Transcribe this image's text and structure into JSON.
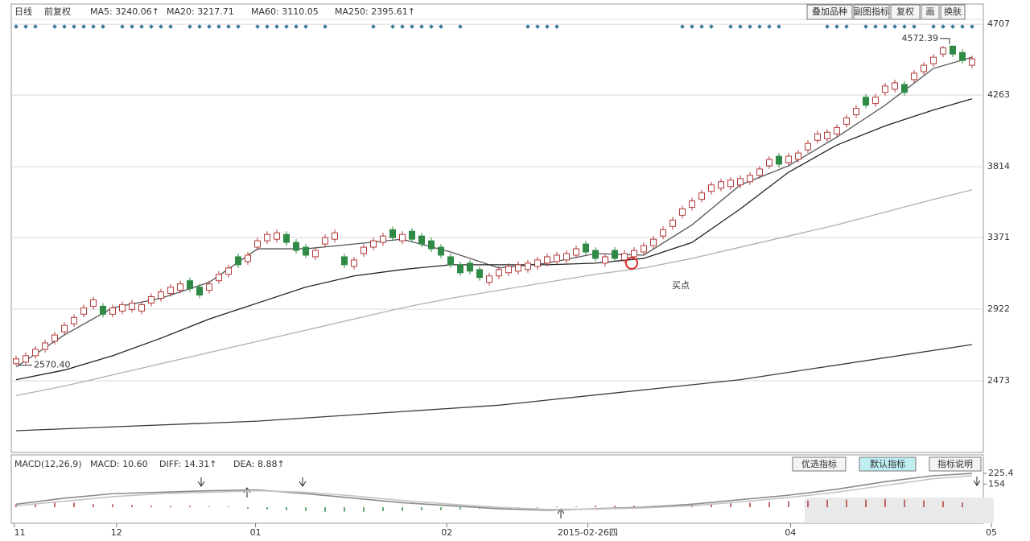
{
  "chart_data": [
    {
      "type": "candlestick",
      "period": "日线",
      "adjust": "前复权",
      "buttons": [
        "叠加品种",
        "副图指标",
        "复权",
        "画",
        "换肤"
      ],
      "up_color": "#b23a3a",
      "down_color": "#2f8a46",
      "open": [
        2580,
        2590,
        2630,
        2670,
        2720,
        2780,
        2830,
        2890,
        2940,
        2940,
        2890,
        2910,
        2920,
        2910,
        2960,
        2990,
        3020,
        3040,
        3100,
        3060,
        3040,
        3100,
        3140,
        3250,
        3220,
        3310,
        3350,
        3360,
        3390,
        3340,
        3310,
        3250,
        3330,
        3360,
        3250,
        3190,
        3270,
        3310,
        3340,
        3420,
        3350,
        3410,
        3380,
        3350,
        3310,
        3250,
        3200,
        3210,
        3170,
        3090,
        3130,
        3150,
        3160,
        3170,
        3190,
        3210,
        3220,
        3230,
        3260,
        3330,
        3290,
        3210,
        3290,
        3230,
        3250,
        3280,
        3320,
        3380,
        3440,
        3510,
        3560,
        3610,
        3660,
        3680,
        3690,
        3700,
        3720,
        3760,
        3820,
        3880,
        3840,
        3860,
        3920,
        3980,
        3990,
        4020,
        4080,
        4140,
        4250,
        4210,
        4280,
        4300,
        4330,
        4360,
        4410,
        4460,
        4520,
        4570,
        4530,
        4450
      ],
      "high": [
        2630,
        2650,
        2690,
        2730,
        2780,
        2840,
        2890,
        2950,
        3000,
        2960,
        2950,
        2970,
        2980,
        2970,
        3020,
        3050,
        3080,
        3100,
        3120,
        3080,
        3100,
        3160,
        3200,
        3270,
        3280,
        3370,
        3410,
        3420,
        3410,
        3360,
        3330,
        3310,
        3390,
        3420,
        3270,
        3250,
        3330,
        3370,
        3400,
        3440,
        3410,
        3430,
        3400,
        3370,
        3330,
        3270,
        3220,
        3230,
        3190,
        3150,
        3190,
        3210,
        3220,
        3230,
        3250,
        3270,
        3280,
        3290,
        3320,
        3350,
        3310,
        3270,
        3310,
        3290,
        3310,
        3340,
        3380,
        3440,
        3500,
        3570,
        3620,
        3670,
        3720,
        3740,
        3750,
        3760,
        3780,
        3820,
        3880,
        3900,
        3900,
        3920,
        3980,
        4040,
        4050,
        4080,
        4140,
        4200,
        4270,
        4270,
        4340,
        4360,
        4350,
        4420,
        4470,
        4520,
        4570,
        4572.39,
        4550,
        4510
      ],
      "low": [
        2570.4,
        2575,
        2610,
        2650,
        2700,
        2760,
        2810,
        2870,
        2920,
        2870,
        2870,
        2890,
        2900,
        2890,
        2940,
        2970,
        3000,
        3020,
        3030,
        2990,
        3020,
        3080,
        3120,
        3180,
        3200,
        3290,
        3330,
        3340,
        3320,
        3270,
        3240,
        3230,
        3310,
        3340,
        3180,
        3170,
        3250,
        3290,
        3320,
        3350,
        3330,
        3340,
        3310,
        3280,
        3240,
        3180,
        3130,
        3140,
        3100,
        3070,
        3110,
        3130,
        3140,
        3150,
        3170,
        3190,
        3200,
        3210,
        3240,
        3260,
        3220,
        3190,
        3220,
        3210,
        3230,
        3260,
        3300,
        3360,
        3420,
        3490,
        3540,
        3590,
        3640,
        3660,
        3670,
        3680,
        3700,
        3740,
        3800,
        3810,
        3820,
        3840,
        3900,
        3960,
        3970,
        4000,
        4060,
        4120,
        4180,
        4190,
        4260,
        4280,
        4260,
        4340,
        4390,
        4440,
        4500,
        4500,
        4460,
        4430
      ],
      "close": [
        2610,
        2630,
        2670,
        2710,
        2760,
        2820,
        2870,
        2930,
        2980,
        2890,
        2930,
        2950,
        2960,
        2950,
        3000,
        3030,
        3060,
        3080,
        3050,
        3010,
        3080,
        3140,
        3180,
        3200,
        3260,
        3350,
        3390,
        3400,
        3340,
        3290,
        3260,
        3290,
        3370,
        3400,
        3200,
        3230,
        3310,
        3350,
        3380,
        3370,
        3390,
        3360,
        3330,
        3300,
        3260,
        3200,
        3150,
        3160,
        3120,
        3130,
        3170,
        3190,
        3200,
        3210,
        3230,
        3250,
        3260,
        3270,
        3300,
        3280,
        3240,
        3250,
        3240,
        3270,
        3290,
        3320,
        3360,
        3420,
        3480,
        3550,
        3600,
        3650,
        3700,
        3720,
        3730,
        3740,
        3760,
        3800,
        3860,
        3830,
        3880,
        3900,
        3960,
        4020,
        4030,
        4060,
        4120,
        4180,
        4200,
        4250,
        4320,
        4340,
        4280,
        4400,
        4450,
        4500,
        4560,
        4520,
        4480,
        4490
      ],
      "series": [
        {
          "name": "MA5: 3240.06↑",
          "color": "#555555",
          "x": [
            0,
            5,
            10,
            15,
            20,
            25,
            30,
            35,
            40,
            45,
            50,
            55,
            60,
            65,
            70,
            75,
            80,
            85,
            90,
            95,
            99
          ],
          "values": [
            2560,
            2760,
            2930,
            2990,
            3090,
            3300,
            3300,
            3330,
            3360,
            3280,
            3180,
            3210,
            3270,
            3260,
            3450,
            3700,
            3820,
            4000,
            4200,
            4430,
            4500
          ]
        },
        {
          "name": "MA20: 3217.71",
          "color": "#222222",
          "x": [
            0,
            5,
            10,
            15,
            20,
            25,
            30,
            35,
            40,
            45,
            50,
            55,
            60,
            65,
            70,
            75,
            80,
            85,
            90,
            95,
            99
          ],
          "values": [
            2480,
            2540,
            2630,
            2740,
            2860,
            2960,
            3060,
            3130,
            3170,
            3200,
            3200,
            3200,
            3210,
            3240,
            3340,
            3550,
            3780,
            3950,
            4070,
            4170,
            4240
          ]
        },
        {
          "name": "MA60: 3110.05",
          "color": "#b0b0b0",
          "x": [
            0,
            5,
            10,
            15,
            20,
            25,
            30,
            35,
            40,
            45,
            50,
            55,
            60,
            65,
            70,
            75,
            80,
            85,
            90,
            95,
            99
          ],
          "values": [
            2380,
            2440,
            2510,
            2580,
            2650,
            2720,
            2790,
            2860,
            2930,
            2990,
            3040,
            3090,
            3140,
            3180,
            3240,
            3310,
            3380,
            3450,
            3530,
            3610,
            3670
          ]
        },
        {
          "name": "MA250: 2395.61↑",
          "color": "#3a3a3a",
          "x": [
            0,
            25,
            50,
            75,
            99
          ],
          "values": [
            2160,
            2220,
            2320,
            2480,
            2700
          ]
        }
      ],
      "annotations": [
        {
          "text": "4572.39",
          "x": 97,
          "y": 4572.39
        },
        {
          "text": "2570.40",
          "x": 0,
          "y": 2570.4
        },
        {
          "text": "买点",
          "x": 63.75,
          "y": 3210
        }
      ],
      "xlim": [
        -0.5,
        99.5
      ],
      "xticks": [
        {
          "value": -0.2,
          "label": "11"
        },
        {
          "value": 10.4,
          "label": "12"
        },
        {
          "value": 24.8,
          "label": "01"
        },
        {
          "value": 44.6,
          "label": "02"
        },
        {
          "value": 59.2,
          "label": "2015-02-26四"
        },
        {
          "value": 80.2,
          "label": "04"
        },
        {
          "value": 101,
          "label": "05"
        }
      ],
      "ylim": [
        2034,
        4748
      ],
      "yticks": [
        4707,
        4263,
        3814,
        3371,
        2922,
        2473
      ],
      "grid": true
    },
    {
      "type": "macd",
      "title": "MACD(12,26,9)",
      "buttons": [
        "优选指标",
        "默认指标",
        "指标说明"
      ],
      "bars": {
        "name": "MACD: 10.60",
        "color": "#b23a3a",
        "x": [
          0,
          2,
          4,
          6,
          8,
          10,
          12,
          14,
          16,
          18,
          20,
          22,
          24,
          26,
          28,
          30,
          32,
          34,
          36,
          38,
          40,
          42,
          44,
          46,
          48,
          50,
          52,
          54,
          56,
          58,
          60,
          62,
          64,
          66,
          68,
          70,
          72,
          74,
          76,
          78,
          80,
          82,
          84,
          86,
          88,
          90,
          92,
          94,
          96,
          98
        ],
        "values": [
          20,
          20,
          30,
          30,
          20,
          20,
          15,
          10,
          10,
          10,
          5,
          5,
          -10,
          -15,
          -20,
          -25,
          -30,
          -30,
          -30,
          -25,
          -25,
          -20,
          -20,
          -15,
          -10,
          -10,
          -5,
          -5,
          5,
          5,
          10,
          10,
          10,
          10,
          15,
          20,
          25,
          30,
          30,
          35,
          40,
          45,
          50,
          50,
          50,
          55,
          50,
          45,
          40,
          30
        ]
      },
      "series": [
        {
          "name": "DIFF: 14.31↑",
          "color": "#8a8a8a",
          "x": [
            0,
            5,
            10,
            15,
            20,
            25,
            30,
            35,
            40,
            45,
            50,
            55,
            60,
            65,
            70,
            75,
            80,
            85,
            90,
            95,
            99
          ],
          "values": [
            20,
            60,
            90,
            100,
            110,
            115,
            90,
            60,
            30,
            10,
            -10,
            -20,
            -10,
            0,
            20,
            50,
            80,
            120,
            170,
            210,
            225
          ]
        },
        {
          "name": "DEA: 8.88↑",
          "color": "#c4c4c4",
          "x": [
            0,
            5,
            10,
            15,
            20,
            25,
            30,
            35,
            40,
            45,
            50,
            55,
            60,
            65,
            70,
            75,
            80,
            85,
            90,
            95,
            99
          ],
          "values": [
            10,
            40,
            70,
            90,
            100,
            110,
            100,
            75,
            45,
            20,
            0,
            -15,
            -12,
            -5,
            10,
            35,
            65,
            100,
            145,
            190,
            210
          ]
        }
      ],
      "xlim": [
        -0.5,
        99.5
      ],
      "ylim": [
        -107,
        279
      ],
      "yticks": [
        {
          "value": 225.4,
          "label": "225.4"
        },
        154
      ]
    }
  ]
}
